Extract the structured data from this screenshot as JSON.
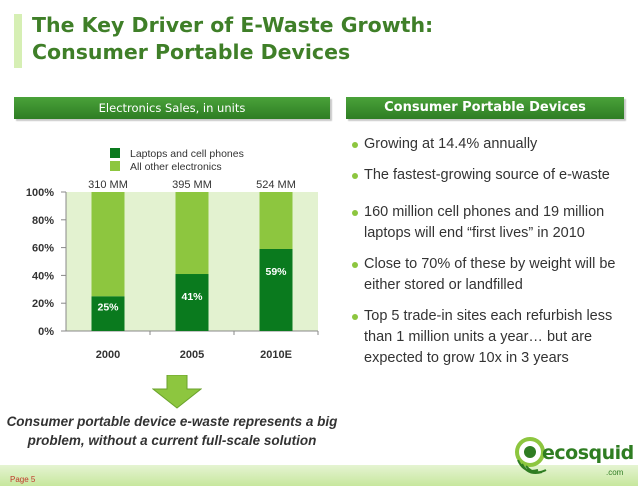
{
  "slide": {
    "title_line1": "The Key Driver of E-Waste Growth:",
    "title_line2": "Consumer Portable Devices",
    "page_label": "Page 5"
  },
  "left_panel": {
    "header": "Electronics Sales, in units"
  },
  "right_panel": {
    "header": "Consumer Portable Devices",
    "bullets": [
      "Growing at 14.4% annually",
      "The fastest-growing source of e-waste",
      "160 million cell phones and 19 million laptops will end “first lives” in 2010",
      "Close to 70% of these by weight will be either stored or landfilled",
      "Top 5 trade-in sites each refurbish less than 1 million units a year… but are expected to grow 10x in 3 years"
    ]
  },
  "caption": "Consumer portable device e-waste represents a big problem, without a current full-scale solution",
  "logo": {
    "name": "ecosquid",
    "suffix": ".com"
  },
  "colors": {
    "title": "#3f7f28",
    "header": "#3a8f2e",
    "series_dark": "#0a7a1e",
    "series_light": "#8dc63f",
    "plot_bg": "#e3f2d0"
  },
  "chart_data": {
    "type": "bar",
    "stacked": true,
    "categories": [
      "2000",
      "2005",
      "2010E"
    ],
    "totals": [
      "310 MM",
      "395 MM",
      "524 MM"
    ],
    "series": [
      {
        "name": "Laptops and cell phones",
        "values": [
          25,
          41,
          59
        ],
        "color": "#0a7a1e",
        "labels": [
          "25%",
          "41%",
          "59%"
        ]
      },
      {
        "name": "All other electronics",
        "values": [
          75,
          59,
          41
        ],
        "color": "#8dc63f"
      }
    ],
    "ylim": [
      0,
      100
    ],
    "yticks": [
      "0%",
      "20%",
      "40%",
      "60%",
      "80%",
      "100%"
    ],
    "legend": "top-center",
    "grid": false
  }
}
